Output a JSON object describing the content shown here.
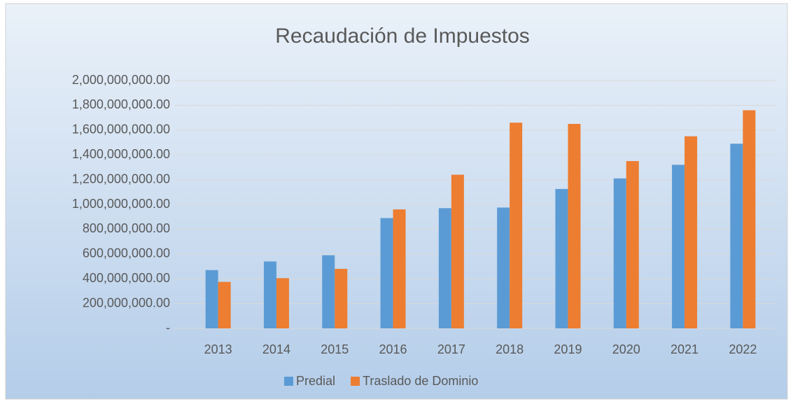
{
  "chart_data": {
    "type": "bar",
    "title": "Recaudación de Impuestos",
    "categories": [
      "2013",
      "2014",
      "2015",
      "2016",
      "2017",
      "2018",
      "2019",
      "2020",
      "2021",
      "2022"
    ],
    "series": [
      {
        "name": "Predial",
        "color": "#5b9bd5",
        "values": [
          470000000,
          540000000,
          590000000,
          890000000,
          970000000,
          975000000,
          1125000000,
          1210000000,
          1320000000,
          1490000000
        ]
      },
      {
        "name": "Traslado de Dominio",
        "color": "#ed7d31",
        "values": [
          375000000,
          405000000,
          480000000,
          960000000,
          1240000000,
          1660000000,
          1650000000,
          1350000000,
          1550000000,
          1760000000
        ]
      }
    ],
    "ylim": [
      0,
      2000000000
    ],
    "yticks": [
      {
        "value": 0,
        "label": "-"
      },
      {
        "value": 200000000,
        "label": "200,000,000.00"
      },
      {
        "value": 400000000,
        "label": "400,000,000.00"
      },
      {
        "value": 600000000,
        "label": "600,000,000.00"
      },
      {
        "value": 800000000,
        "label": "800,000,000.00"
      },
      {
        "value": 1000000000,
        "label": "1,000,000,000.00"
      },
      {
        "value": 1200000000,
        "label": "1,200,000,000.00"
      },
      {
        "value": 1400000000,
        "label": "1,400,000,000.00"
      },
      {
        "value": 1600000000,
        "label": "1,600,000,000.00"
      },
      {
        "value": 1800000000,
        "label": "1,800,000,000.00"
      },
      {
        "value": 2000000000,
        "label": "2,000,000,000.00"
      }
    ],
    "grid": true,
    "legend": "bottom"
  }
}
